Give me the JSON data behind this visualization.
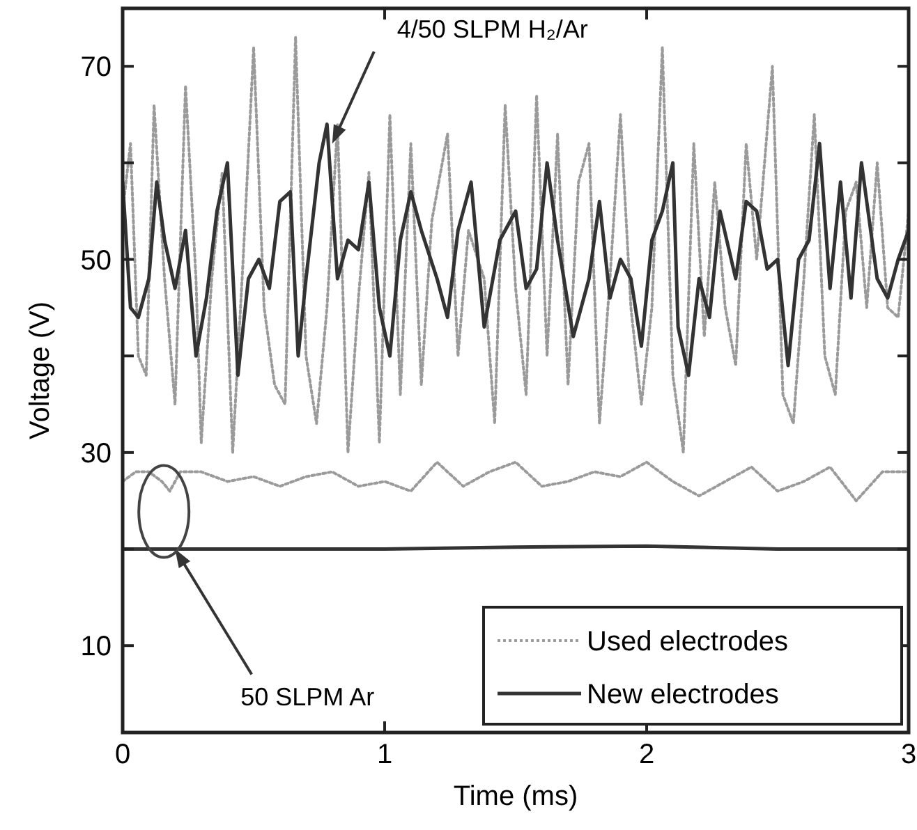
{
  "chart_data": {
    "type": "line",
    "xlabel": "Time (ms)",
    "ylabel": "Voltage (V)",
    "xlim": [
      0,
      3
    ],
    "xticks": [
      0,
      1,
      2,
      3
    ],
    "ylim": [
      1,
      76
    ],
    "yticks": [
      10,
      {
        "value": 20,
        "label": null
      },
      30,
      {
        "value": 40,
        "label": null
      },
      50,
      {
        "value": 60,
        "label": null
      },
      70
    ],
    "legend": "bottom right",
    "grid": false,
    "annotations": [
      {
        "text": "4/50 SLPM H₂/Ar",
        "x": 0.8,
        "y": 62
      },
      {
        "text": "50 SLPM Ar",
        "x": 0.2,
        "y": 20
      }
    ],
    "series": [
      {
        "name": "Used electrodes",
        "color": "#9a9a9a",
        "line_style": "dotted",
        "x": [
          0,
          0.03,
          0.06,
          0.09,
          0.12,
          0.16,
          0.2,
          0.24,
          0.28,
          0.3,
          0.34,
          0.38,
          0.42,
          0.46,
          0.5,
          0.54,
          0.58,
          0.62,
          0.66,
          0.7,
          0.74,
          0.78,
          0.82,
          0.86,
          0.9,
          0.94,
          0.98,
          1.02,
          1.06,
          1.1,
          1.14,
          1.18,
          1.24,
          1.28,
          1.32,
          1.38,
          1.42,
          1.46,
          1.5,
          1.54,
          1.58,
          1.62,
          1.66,
          1.7,
          1.74,
          1.78,
          1.82,
          1.86,
          1.9,
          1.94,
          1.98,
          2.02,
          2.06,
          2.1,
          2.14,
          2.18,
          2.22,
          2.26,
          2.3,
          2.34,
          2.38,
          2.42,
          2.48,
          2.52,
          2.56,
          2.6,
          2.64,
          2.68,
          2.72,
          2.76,
          2.8,
          2.84,
          2.88,
          2.92,
          2.96,
          3.0
        ],
        "values": [
          55,
          62,
          40,
          38,
          66,
          48,
          35,
          68,
          48,
          31,
          48,
          59,
          30,
          50,
          72,
          45,
          37,
          35,
          73,
          40,
          33,
          45,
          64,
          30,
          46,
          59,
          31,
          65,
          36,
          62,
          37,
          54,
          63,
          40,
          53,
          48,
          33,
          66,
          47,
          36,
          67,
          40,
          63,
          37,
          58,
          62,
          33,
          48,
          65,
          45,
          35,
          45,
          72,
          38,
          30,
          62,
          42,
          58,
          45,
          39,
          62,
          50,
          70,
          36,
          33,
          48,
          65,
          40,
          36,
          55,
          58,
          45,
          60,
          45,
          44,
          55
        ]
      },
      {
        "name": "New electrodes",
        "color": "#333333",
        "line_style": "solid",
        "x": [
          0,
          0.03,
          0.06,
          0.1,
          0.13,
          0.16,
          0.2,
          0.24,
          0.28,
          0.32,
          0.36,
          0.4,
          0.44,
          0.48,
          0.52,
          0.56,
          0.6,
          0.64,
          0.67,
          0.7,
          0.75,
          0.78,
          0.82,
          0.86,
          0.9,
          0.94,
          0.98,
          1.02,
          1.06,
          1.1,
          1.14,
          1.2,
          1.24,
          1.28,
          1.33,
          1.38,
          1.44,
          1.5,
          1.54,
          1.58,
          1.62,
          1.66,
          1.72,
          1.78,
          1.82,
          1.86,
          1.9,
          1.94,
          1.98,
          2.02,
          2.06,
          2.1,
          2.12,
          2.16,
          2.2,
          2.24,
          2.28,
          2.34,
          2.38,
          2.42,
          2.46,
          2.5,
          2.54,
          2.58,
          2.62,
          2.66,
          2.7,
          2.74,
          2.78,
          2.82,
          2.88,
          2.92,
          2.96,
          3.0
        ],
        "values": [
          58,
          45,
          44,
          48,
          58,
          52,
          47,
          53,
          40,
          46,
          55,
          60,
          38,
          48,
          50,
          47,
          56,
          57,
          40,
          48,
          60,
          64,
          48,
          52,
          51,
          58,
          45,
          40,
          52,
          57,
          53,
          48,
          44,
          53,
          58,
          43,
          52,
          55,
          47,
          49,
          60,
          52,
          42,
          48,
          56,
          46,
          50,
          48,
          41,
          52,
          55,
          60,
          43,
          38,
          48,
          44,
          55,
          48,
          56,
          55,
          49,
          50,
          39,
          50,
          52,
          62,
          47,
          58,
          46,
          60,
          48,
          46,
          50,
          53
        ]
      },
      {
        "color": "#9a9a9a",
        "line_style": "dotted",
        "x": [
          0,
          0.05,
          0.1,
          0.15,
          0.18,
          0.22,
          0.3,
          0.4,
          0.5,
          0.6,
          0.7,
          0.8,
          0.9,
          1.0,
          1.1,
          1.2,
          1.3,
          1.4,
          1.5,
          1.6,
          1.7,
          1.8,
          1.9,
          2.0,
          2.1,
          2.2,
          2.3,
          2.4,
          2.5,
          2.6,
          2.7,
          2.8,
          2.9,
          3.0
        ],
        "values": [
          27,
          28,
          28,
          27,
          26,
          28,
          28,
          27,
          27.5,
          26.5,
          27.5,
          28,
          26.5,
          27,
          26,
          29,
          26.5,
          28,
          29,
          26.5,
          27,
          28,
          27.5,
          29,
          27,
          25.5,
          27,
          28.5,
          26,
          27,
          28.5,
          25,
          28,
          28
        ]
      },
      {
        "color": "#333333",
        "line_style": "solid",
        "x": [
          0,
          0.5,
          1,
          1.5,
          2,
          2.5,
          3
        ],
        "values": [
          20,
          20,
          20,
          20.2,
          20.3,
          20,
          20
        ]
      }
    ]
  }
}
